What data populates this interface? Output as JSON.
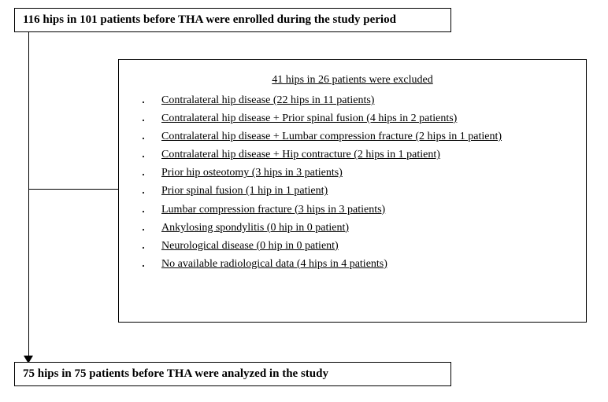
{
  "flowchart": {
    "type": "flowchart",
    "background_color": "#ffffff",
    "border_color": "#000000",
    "font_family": "Times New Roman",
    "top_box": {
      "text": "116 hips in 101 patients before THA were enrolled during the study period",
      "font_size": 15,
      "font_weight": "bold"
    },
    "exclusion_box": {
      "title": "41 hips in 26 patients were excluded",
      "title_font_size": 14,
      "item_font_size": 14,
      "items": [
        "Contralateral hip disease (22 hips in 11 patients)",
        "Contralateral hip disease + Prior spinal fusion (4 hips in 2 patients)",
        "Contralateral hip disease + Lumbar compression fracture (2 hips in 1 patient)",
        "Contralateral hip disease + Hip contracture (2 hips in 1 patient)",
        "Prior hip osteotomy (3 hips in 3 patients)",
        "Prior spinal fusion (1 hip in 1 patient)",
        "Lumbar compression fracture (3 hips in 3 patients)",
        "Ankylosing spondylitis (0 hip in 0 patient)",
        "Neurological disease (0 hip in 0 patient)",
        "No available radiological data (4 hips in 4 patients)"
      ]
    },
    "bottom_box": {
      "text": "75 hips in 75 patients before THA were analyzed in the study",
      "font_size": 15,
      "font_weight": "bold"
    }
  }
}
